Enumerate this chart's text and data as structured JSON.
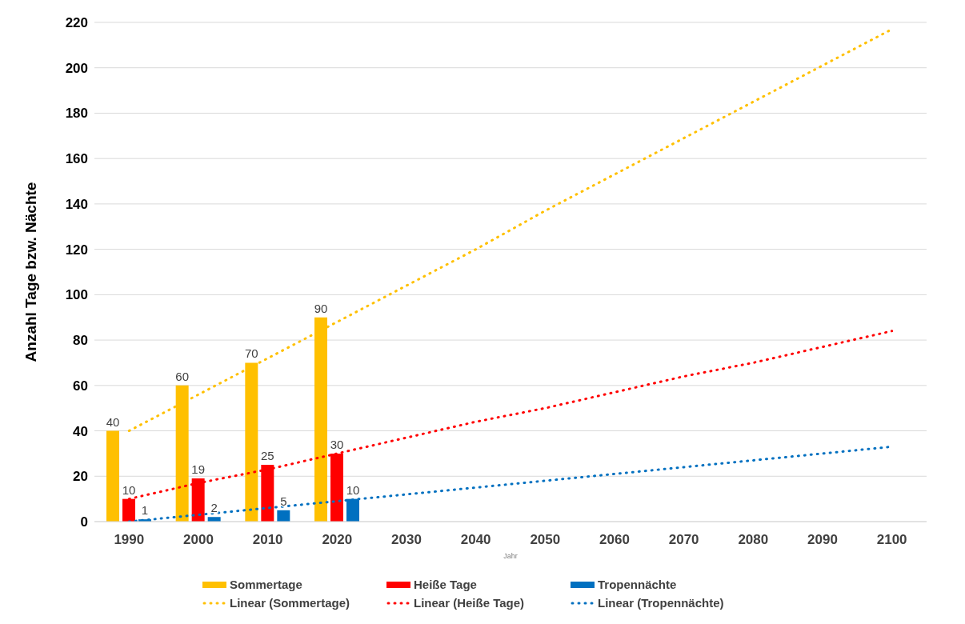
{
  "chart_data": {
    "type": "bar",
    "xlabel": "Jahr",
    "ylabel": "Anzahl Tage bzw. Nächte",
    "categories": [
      "1990",
      "2000",
      "2010",
      "2020",
      "2030",
      "2040",
      "2050",
      "2060",
      "2070",
      "2080",
      "2090",
      "2100"
    ],
    "series": [
      {
        "name": "Sommertage",
        "color": "#ffc000",
        "values": [
          40,
          60,
          70,
          90,
          null,
          null,
          null,
          null,
          null,
          null,
          null,
          null
        ],
        "value_labels": [
          "40",
          "60",
          "70",
          "90",
          null,
          null,
          null,
          null,
          null,
          null,
          null,
          null
        ]
      },
      {
        "name": "Heiße Tage",
        "color": "#ff0000",
        "values": [
          10,
          19,
          25,
          30,
          null,
          null,
          null,
          null,
          null,
          null,
          null,
          null
        ],
        "value_labels": [
          "10",
          "19",
          "25",
          "30",
          null,
          null,
          null,
          null,
          null,
          null,
          null,
          null
        ]
      },
      {
        "name": "Tropennächte",
        "color": "#0070c0",
        "values": [
          1,
          2,
          5,
          10,
          null,
          null,
          null,
          null,
          null,
          null,
          null,
          null
        ],
        "value_labels": [
          "1",
          "2",
          "5",
          "10",
          null,
          null,
          null,
          null,
          null,
          null,
          null,
          null
        ]
      },
      {
        "name": "Linear (Sommertage)",
        "type": "line",
        "color": "#ffc000",
        "line_style": "dotted",
        "values": [
          40,
          56,
          72,
          88,
          104,
          120,
          137,
          153,
          169,
          185,
          201,
          217
        ]
      },
      {
        "name": "Linear (Heiße Tage)",
        "type": "line",
        "color": "#ff0000",
        "line_style": "dotted",
        "values": [
          10,
          17,
          23,
          30,
          37,
          44,
          50,
          57,
          64,
          70,
          77,
          84
        ]
      },
      {
        "name": "Linear (Tropennächte)",
        "type": "line",
        "color": "#0070c0",
        "line_style": "dotted",
        "values": [
          0,
          3,
          6,
          9,
          12,
          15,
          18,
          21,
          24,
          27,
          30,
          33
        ]
      }
    ],
    "ylim": [
      0,
      220
    ],
    "yticks": [
      0,
      20,
      40,
      60,
      80,
      100,
      120,
      140,
      160,
      180,
      200,
      220
    ],
    "grid": "y",
    "legend": "bottom"
  }
}
